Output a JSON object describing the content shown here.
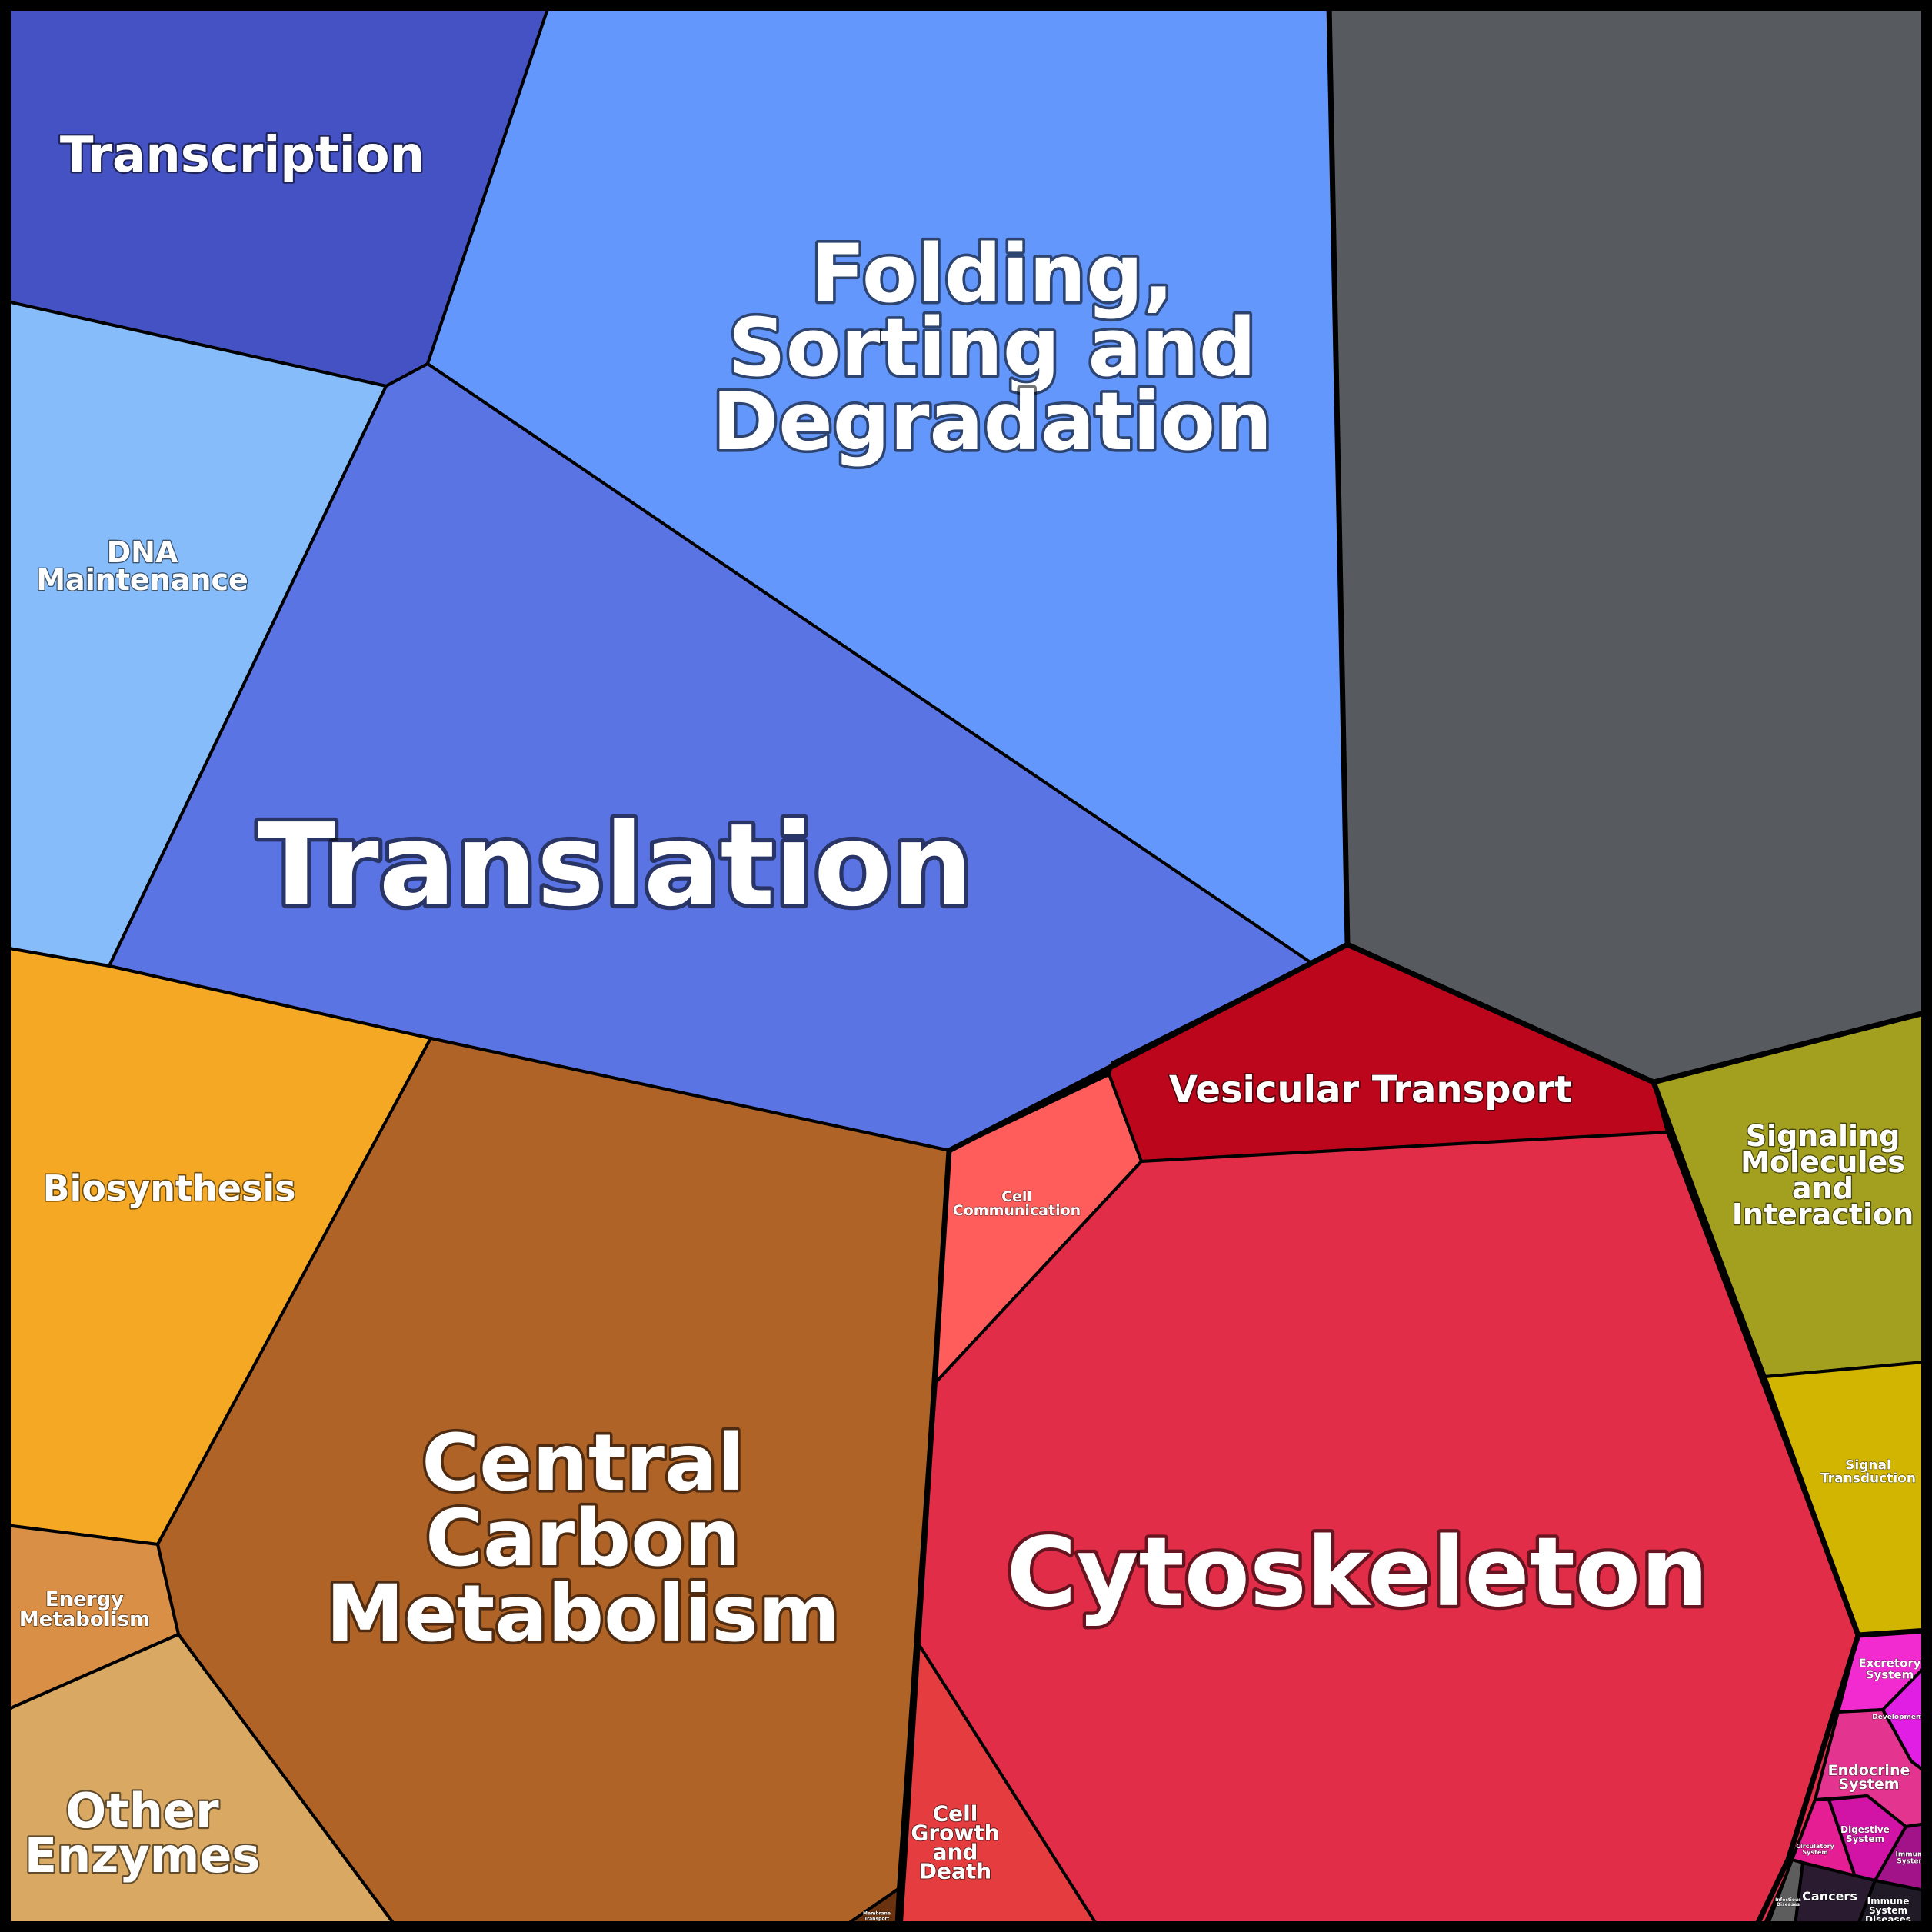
{
  "cells": [
    {
      "id": "transcription",
      "label": "Transcription",
      "color": "#4552c4"
    },
    {
      "id": "folding-sorting-degradation",
      "label": "Folding, Sorting and Degradation",
      "color": "#6497fb"
    },
    {
      "id": "dna-maintenance",
      "label": "DNA Maintenance",
      "color": "#85bcf9"
    },
    {
      "id": "translation",
      "label": "Translation",
      "color": "#5b74e4"
    },
    {
      "id": "unlabeled-gray",
      "label": "",
      "color": "#575b60"
    },
    {
      "id": "biosynthesis",
      "label": "Biosynthesis",
      "color": "#f5a823"
    },
    {
      "id": "central-carbon-metabolism",
      "label": "Central Carbon Metabolism",
      "color": "#b06327"
    },
    {
      "id": "energy-metabolism",
      "label": "Energy Metabolism",
      "color": "#d98f45"
    },
    {
      "id": "other-enzymes",
      "label": "Other Enzymes",
      "color": "#d9a963"
    },
    {
      "id": "membrane-transport",
      "label": "Membrane Transport",
      "color": "#6b3210"
    },
    {
      "id": "vesicular-transport",
      "label": "Vesicular Transport",
      "color": "#bb061b"
    },
    {
      "id": "cell-communication",
      "label": "Cell Communication",
      "color": "#fe5d5c"
    },
    {
      "id": "cytoskeleton",
      "label": "Cytoskeleton",
      "color": "#e12d48"
    },
    {
      "id": "cell-growth-and-death",
      "label": "Cell Growth and Death",
      "color": "#e43c3f"
    },
    {
      "id": "signaling-molecules-and-interaction",
      "label": "Signaling Molecules and Interaction",
      "color": "#a39f1f"
    },
    {
      "id": "signal-transduction",
      "label": "Signal Transduction",
      "color": "#d1b500"
    },
    {
      "id": "excretory-system",
      "label": "Excretory System",
      "color": "#f22bd0"
    },
    {
      "id": "development",
      "label": "Development",
      "color": "#e11ee3"
    },
    {
      "id": "endocrine-system",
      "label": "Endocrine System",
      "color": "#e3358f"
    },
    {
      "id": "circulatory-system",
      "label": "Circulatory System",
      "color": "#e51f93"
    },
    {
      "id": "digestive-system",
      "label": "Digestive System",
      "color": "#d113a6"
    },
    {
      "id": "immune-system",
      "label": "Immune System",
      "color": "#a2138a"
    },
    {
      "id": "infectious-diseases",
      "label": "Infectious Diseases",
      "color": "#5d5d5d"
    },
    {
      "id": "cancers",
      "label": "Cancers",
      "color": "#2a1b31"
    },
    {
      "id": "immune-system-diseases",
      "label": "Immune System Diseases",
      "color": "#1f1a25"
    }
  ]
}
